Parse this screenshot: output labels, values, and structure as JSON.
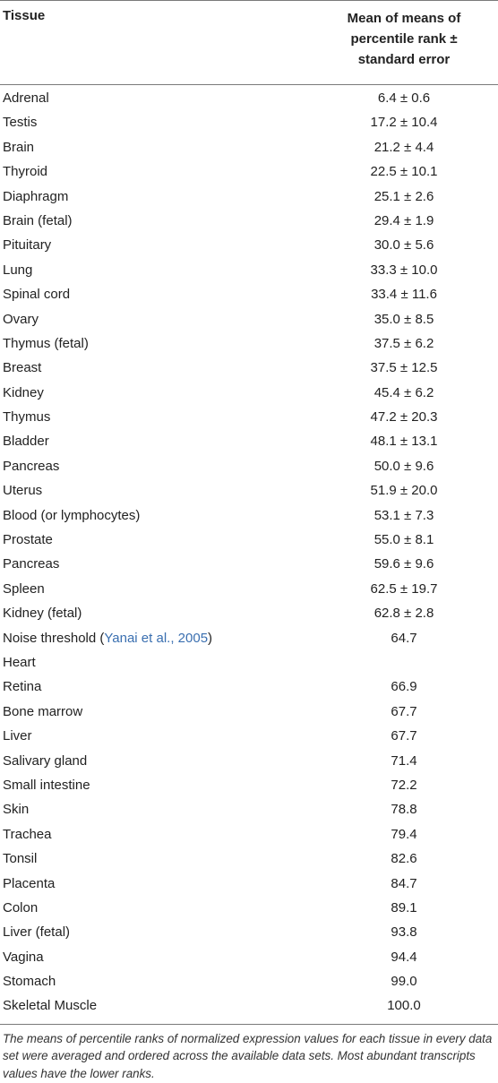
{
  "table": {
    "header": {
      "col1": "Tissue",
      "col2_lines": [
        "Mean of means of",
        "percentile rank ±",
        "standard error"
      ]
    },
    "rows": [
      {
        "tissue": "Adrenal",
        "value": "6.4 ± 0.6"
      },
      {
        "tissue": "Testis",
        "value": "17.2 ± 10.4"
      },
      {
        "tissue": "Brain",
        "value": "21.2 ± 4.4"
      },
      {
        "tissue": "Thyroid",
        "value": "22.5 ± 10.1"
      },
      {
        "tissue": "Diaphragm",
        "value": "25.1 ± 2.6"
      },
      {
        "tissue": "Brain (fetal)",
        "value": "29.4 ± 1.9"
      },
      {
        "tissue": "Pituitary",
        "value": "30.0 ± 5.6"
      },
      {
        "tissue": "Lung",
        "value": "33.3 ± 10.0"
      },
      {
        "tissue": "Spinal cord",
        "value": "33.4 ± 11.6"
      },
      {
        "tissue": "Ovary",
        "value": "35.0 ± 8.5"
      },
      {
        "tissue": "Thymus (fetal)",
        "value": "37.5 ± 6.2"
      },
      {
        "tissue": "Breast",
        "value": "37.5 ± 12.5"
      },
      {
        "tissue": "Kidney",
        "value": "45.4 ± 6.2"
      },
      {
        "tissue": "Thymus",
        "value": "47.2 ± 20.3"
      },
      {
        "tissue": "Bladder",
        "value": "48.1 ± 13.1"
      },
      {
        "tissue": "Pancreas",
        "value": "50.0 ± 9.6"
      },
      {
        "tissue": "Uterus",
        "value": "51.9 ± 20.0"
      },
      {
        "tissue": "Blood (or lymphocytes)",
        "value": "53.1 ± 7.3"
      },
      {
        "tissue": "Prostate",
        "value": "55.0 ± 8.1"
      },
      {
        "tissue": "Pancreas",
        "value": "59.6 ± 9.6"
      },
      {
        "tissue": "Spleen",
        "value": "62.5 ± 19.7"
      },
      {
        "tissue": "Kidney (fetal)",
        "value": "62.8 ± 2.8"
      }
    ],
    "threshold_row": {
      "label": "Noise threshold (",
      "ref": "Yanai et al., 2005",
      "label_end": ")",
      "value": "64.7",
      "second_line": "Heart"
    },
    "rows_after": [
      {
        "tissue": "Retina",
        "value": "66.9"
      },
      {
        "tissue": "Bone marrow",
        "value": "67.7"
      },
      {
        "tissue": "Liver",
        "value": "67.7"
      },
      {
        "tissue": "Salivary gland",
        "value": "71.4"
      },
      {
        "tissue": "Small intestine",
        "value": "72.2"
      },
      {
        "tissue": "Skin",
        "value": "78.8"
      },
      {
        "tissue": "Trachea",
        "value": "79.4"
      },
      {
        "tissue": "Tonsil",
        "value": "82.6"
      },
      {
        "tissue": "Placenta",
        "value": "84.7"
      },
      {
        "tissue": "Colon",
        "value": "89.1"
      },
      {
        "tissue": "Liver (fetal)",
        "value": "93.8"
      },
      {
        "tissue": "Vagina",
        "value": "94.4"
      },
      {
        "tissue": "Stomach",
        "value": "99.0"
      },
      {
        "tissue": "Skeletal Muscle",
        "value": "100.0"
      }
    ],
    "footnote": "The means of percentile ranks of normalized expression values for each tissue in every data set were averaged and ordered across the available data sets. Most abundant transcripts values have the lower ranks."
  }
}
